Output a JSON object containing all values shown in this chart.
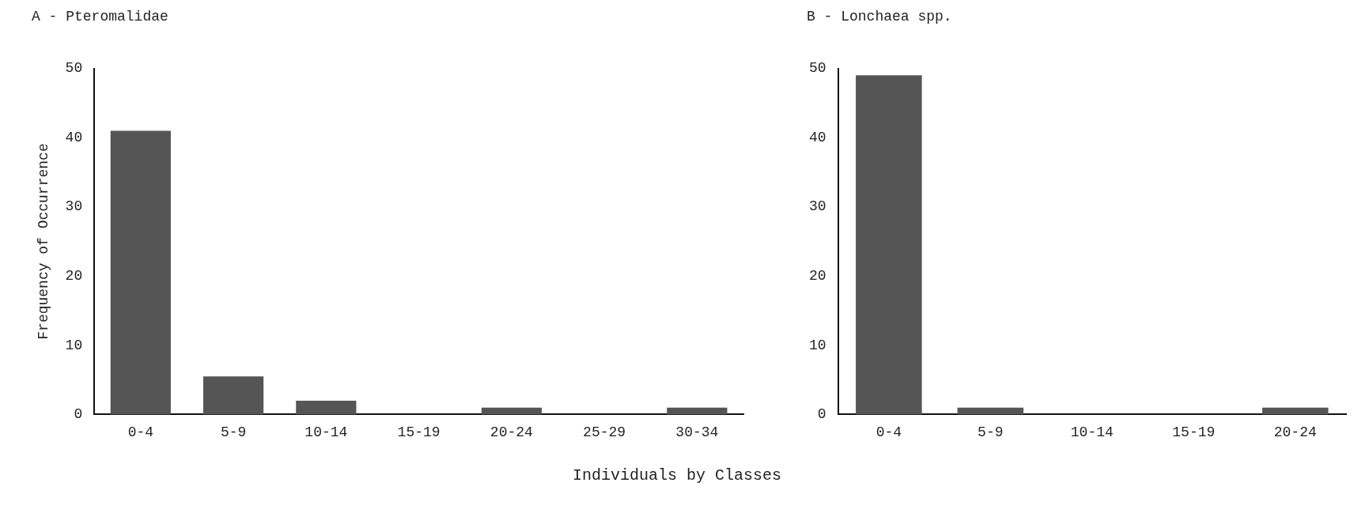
{
  "chart_data": [
    {
      "type": "bar",
      "title": "A - Pteromalidae",
      "ylabel": "Frequency of Occurrence",
      "xlabel": "Individuals by Classes",
      "categories": [
        "0-4",
        "5-9",
        "10-14",
        "15-19",
        "20-24",
        "25-29",
        "30-34"
      ],
      "values": [
        41,
        5.5,
        2,
        0,
        1,
        0,
        1
      ],
      "color": "#555555",
      "ylim": [
        0,
        50
      ],
      "yticks": [
        0,
        10,
        20,
        30,
        40,
        50
      ],
      "grid": false
    },
    {
      "type": "bar",
      "title": "B - Lonchaea spp.",
      "categories": [
        "0-4",
        "5-9",
        "10-14",
        "15-19",
        "20-24"
      ],
      "values": [
        49,
        1,
        0,
        0,
        1
      ],
      "color": "#555555",
      "ylim": [
        0,
        50
      ],
      "yticks": [
        0,
        10,
        20,
        30,
        40,
        50
      ],
      "grid": false
    }
  ]
}
